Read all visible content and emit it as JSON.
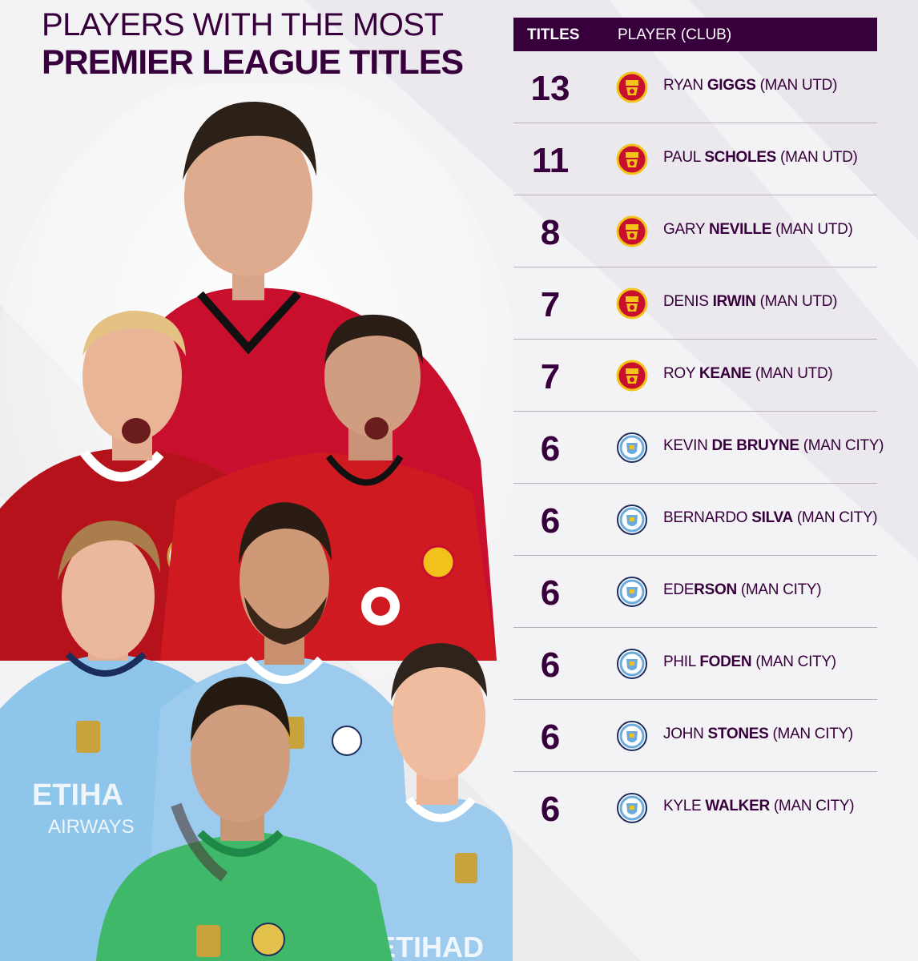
{
  "header": {
    "title_line1": "PLAYERS WITH THE MOST",
    "title_line2": "PREMIER LEAGUE TITLES"
  },
  "table": {
    "col_titles": "TITLES",
    "col_player": "PLAYER (CLUB)",
    "rows": [
      {
        "titles": "13",
        "first": "RYAN",
        "last": "GIGGS",
        "club": "(MAN UTD)",
        "crest": "man-utd-crest"
      },
      {
        "titles": "11",
        "first": "PAUL",
        "last": "SCHOLES",
        "club": "(MAN UTD)",
        "crest": "man-utd-crest"
      },
      {
        "titles": "8",
        "first": "GARY",
        "last": "NEVILLE",
        "club": "(MAN UTD)",
        "crest": "man-utd-crest"
      },
      {
        "titles": "7",
        "first": "DENIS",
        "last": "IRWIN",
        "club": "(MAN UTD)",
        "crest": "man-utd-crest"
      },
      {
        "titles": "7",
        "first": "ROY",
        "last": "KEANE",
        "club": "(MAN UTD)",
        "crest": "man-utd-crest"
      },
      {
        "titles": "6",
        "first": "KEVIN",
        "last": "DE BRUYNE",
        "club": "(MAN CITY)",
        "crest": "man-city-crest"
      },
      {
        "titles": "6",
        "first": "BERNARDO",
        "last": "SILVA",
        "club": "(MAN CITY)",
        "crest": "man-city-crest"
      },
      {
        "titles": "6",
        "first": "EDE",
        "last": "RSON",
        "club": "(MAN CITY)",
        "crest": "man-city-crest"
      },
      {
        "titles": "6",
        "first": "PHIL",
        "last": "FODEN",
        "club": "(MAN CITY)",
        "crest": "man-city-crest"
      },
      {
        "titles": "6",
        "first": "JOHN",
        "last": "STONES",
        "club": "(MAN CITY)",
        "crest": "man-city-crest"
      },
      {
        "titles": "6",
        "first": "KYLE",
        "last": "WALKER",
        "club": "(MAN CITY)",
        "crest": "man-city-crest"
      }
    ]
  },
  "colors": {
    "brand_purple": "#37003c",
    "man_utd_red": "#c8102e",
    "man_city_blue": "#6cabdd",
    "background": "#f3f2f4"
  }
}
